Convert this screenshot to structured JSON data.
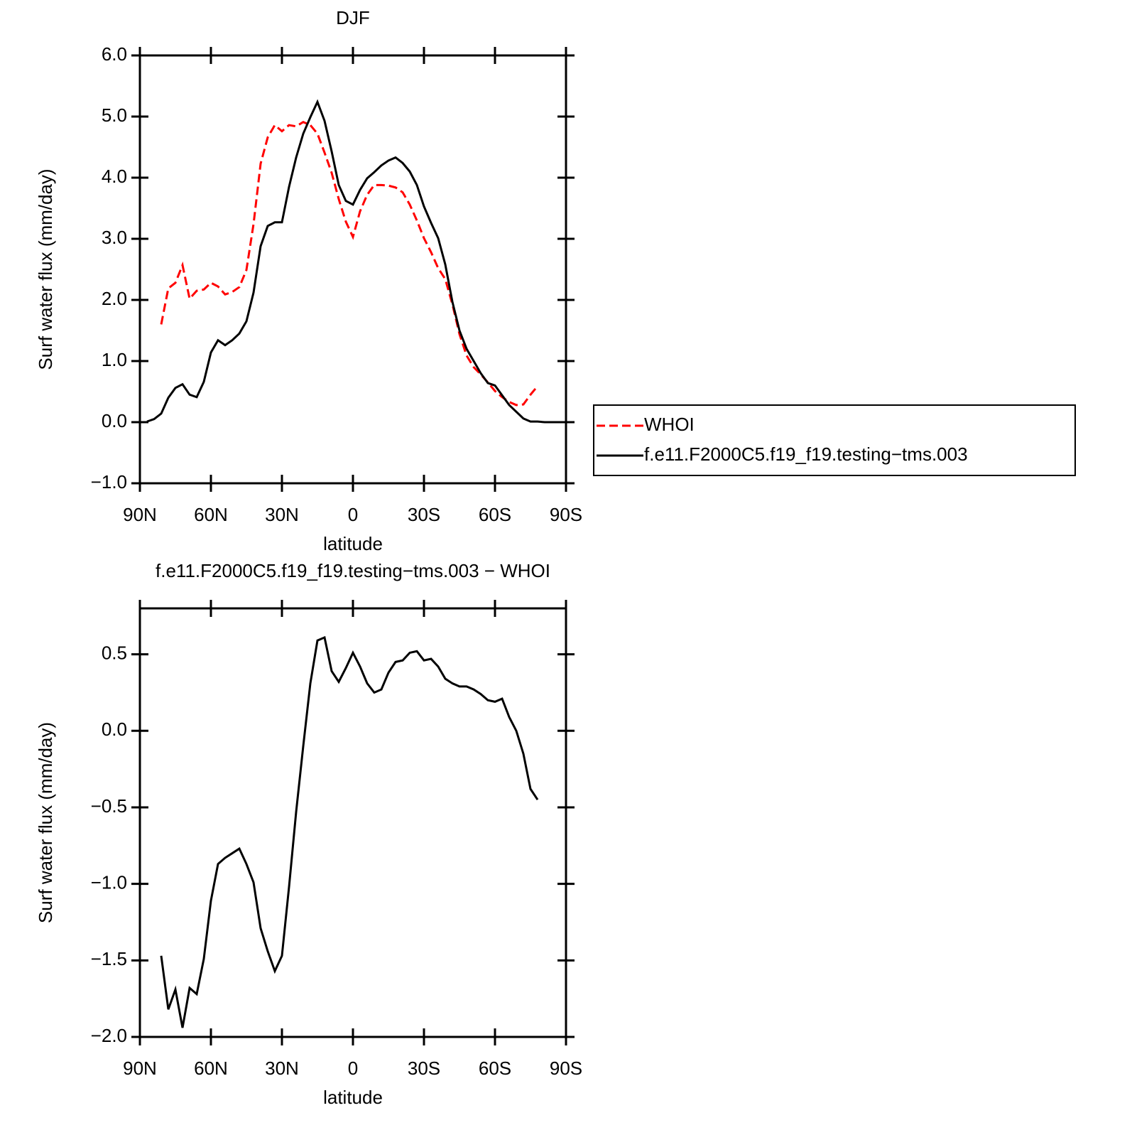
{
  "chart_data": [
    {
      "type": "line",
      "title": "DJF",
      "xlabel": "latitude",
      "ylabel": "Surf water flux (mm/day)",
      "x": [
        87,
        84,
        81,
        78,
        75,
        72,
        69,
        66,
        63,
        60,
        57,
        54,
        51,
        48,
        45,
        42,
        39,
        36,
        33,
        30,
        27,
        24,
        21,
        18,
        15,
        12,
        9,
        6,
        3,
        0,
        -3,
        -6,
        -9,
        -12,
        -15,
        -18,
        -21,
        -24,
        -27,
        -30,
        -33,
        -36,
        -39,
        -42,
        -45,
        -48,
        -51,
        -54,
        -57,
        -60,
        -63,
        -66,
        -69,
        -72,
        -75,
        -78,
        -81,
        -84,
        -87
      ],
      "series": [
        {
          "name": "WHOI",
          "color": "#ff0000",
          "line_style": "dashed",
          "values": [
            null,
            null,
            1.6,
            2.19,
            2.28,
            2.57,
            2.02,
            2.15,
            2.17,
            2.28,
            2.22,
            2.09,
            2.13,
            2.21,
            2.49,
            3.24,
            4.23,
            4.66,
            4.86,
            4.76,
            4.86,
            4.84,
            4.91,
            4.86,
            4.72,
            4.41,
            4.08,
            3.65,
            3.28,
            3.03,
            3.45,
            3.72,
            3.88,
            3.88,
            3.87,
            3.84,
            3.76,
            3.56,
            3.3,
            3.01,
            2.78,
            2.52,
            2.34,
            1.93,
            1.44,
            1.09,
            0.9,
            0.78,
            0.65,
            0.51,
            0.41,
            0.33,
            0.28,
            0.29,
            0.45,
            0.59,
            null,
            null,
            null
          ]
        },
        {
          "name": "f.e11.F2000C5.f19_f19.testing−tms.003",
          "color": "#000000",
          "line_style": "solid",
          "values": [
            0.01,
            0.05,
            0.14,
            0.4,
            0.56,
            0.62,
            0.45,
            0.41,
            0.66,
            1.14,
            1.34,
            1.26,
            1.34,
            1.45,
            1.65,
            2.12,
            2.88,
            3.21,
            3.27,
            3.27,
            3.85,
            4.33,
            4.72,
            4.99,
            5.24,
            4.93,
            4.43,
            3.88,
            3.62,
            3.56,
            3.8,
            3.99,
            4.09,
            4.2,
            4.28,
            4.33,
            4.24,
            4.1,
            3.88,
            3.53,
            3.26,
            3.01,
            2.58,
            1.97,
            1.5,
            1.2,
            1.0,
            0.8,
            0.64,
            0.6,
            0.44,
            0.28,
            0.17,
            0.06,
            0.01,
            0.01,
            0.0,
            0.0,
            0.0
          ]
        }
      ],
      "xlim": [
        90,
        -90
      ],
      "xticks": [
        {
          "value": 90,
          "label": "90N"
        },
        {
          "value": 60,
          "label": "60N"
        },
        {
          "value": 30,
          "label": "30N"
        },
        0,
        {
          "value": -30,
          "label": "30S"
        },
        {
          "value": -60,
          "label": "60S"
        },
        {
          "value": -90,
          "label": "90S"
        }
      ],
      "ylim": [
        -1,
        6
      ],
      "yticks": [
        {
          "value": -1,
          "label": "−1.0"
        },
        {
          "value": 0,
          "label": "0.0"
        },
        {
          "value": 1,
          "label": "1.0"
        },
        {
          "value": 2,
          "label": "2.0"
        },
        {
          "value": 3,
          "label": "3.0"
        },
        {
          "value": 4,
          "label": "4.0"
        },
        {
          "value": 5,
          "label": "5.0"
        },
        {
          "value": 6,
          "label": "6.0"
        }
      ],
      "grid": false,
      "legend": "right"
    },
    {
      "type": "line",
      "title": "f.e11.F2000C5.f19_f19.testing−tms.003 − WHOI",
      "xlabel": "latitude",
      "ylabel": "Surf water flux (mm/day)",
      "x": [
        81,
        78,
        75,
        72,
        69,
        66,
        63,
        60,
        57,
        54,
        51,
        48,
        45,
        42,
        39,
        36,
        33,
        30,
        27,
        24,
        21,
        18,
        15,
        12,
        9,
        6,
        3,
        0,
        -3,
        -6,
        -9,
        -12,
        -15,
        -18,
        -21,
        -24,
        -27,
        -30,
        -33,
        -36,
        -39,
        -42,
        -45,
        -48,
        -51,
        -54,
        -57,
        -60,
        -63,
        -66,
        -69,
        -72,
        -75,
        -78
      ],
      "values": [
        -1.47,
        -1.82,
        -1.69,
        -1.94,
        -1.68,
        -1.72,
        -1.49,
        -1.11,
        -0.87,
        -0.83,
        -0.8,
        -0.77,
        -0.87,
        -0.99,
        -1.29,
        -1.44,
        -1.57,
        -1.47,
        -1.02,
        -0.53,
        -0.1,
        0.31,
        0.59,
        0.61,
        0.39,
        0.32,
        0.41,
        0.51,
        0.42,
        0.31,
        0.25,
        0.27,
        0.38,
        0.45,
        0.46,
        0.51,
        0.52,
        0.46,
        0.47,
        0.42,
        0.34,
        0.31,
        0.29,
        0.29,
        0.27,
        0.24,
        0.2,
        0.19,
        0.21,
        0.09,
        0.0,
        -0.15,
        -0.38,
        -0.45
      ],
      "color": "#000000",
      "xlim": [
        90,
        -90
      ],
      "xticks": [
        {
          "value": 90,
          "label": "90N"
        },
        {
          "value": 60,
          "label": "60N"
        },
        {
          "value": 30,
          "label": "30N"
        },
        0,
        {
          "value": -30,
          "label": "30S"
        },
        {
          "value": -60,
          "label": "60S"
        },
        {
          "value": -90,
          "label": "90S"
        }
      ],
      "ylim": [
        -2,
        0.8
      ],
      "yticks": [
        {
          "value": -2,
          "label": "−2.0"
        },
        {
          "value": -1.5,
          "label": "−1.5"
        },
        {
          "value": -1,
          "label": "−1.0"
        },
        {
          "value": -0.5,
          "label": "−0.5"
        },
        {
          "value": 0,
          "label": "0.0"
        },
        {
          "value": 0.5,
          "label": "0.5"
        }
      ],
      "grid": false
    }
  ]
}
